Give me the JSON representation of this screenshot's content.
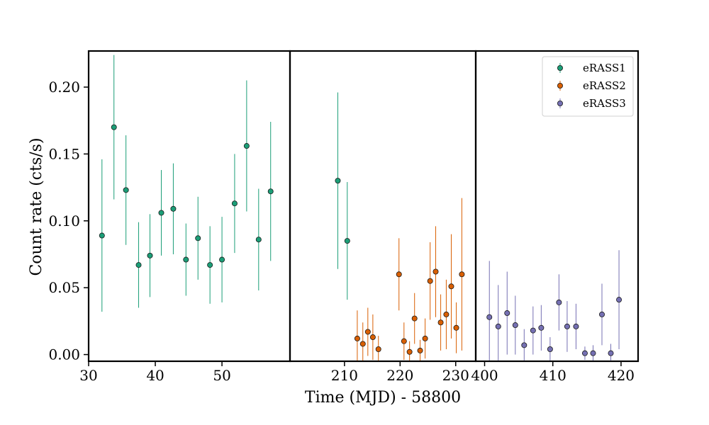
{
  "chart_data": {
    "type": "scatter",
    "ylabel": "Count rate (cts/s)",
    "xlabel": "Time (MJD) - 58800",
    "ylim": [
      -0.005,
      0.227
    ],
    "y_ticks": [
      "0.00",
      "0.05",
      "0.10",
      "0.15",
      "0.20"
    ],
    "y_tick_values": [
      0.0,
      0.05,
      0.1,
      0.15,
      0.2
    ],
    "legend_position": "top-right",
    "panels": [
      {
        "xlim": [
          30,
          60.2
        ],
        "x_ticks": [
          30,
          40,
          50
        ]
      },
      {
        "xlim": [
          200.2,
          233.6
        ],
        "x_ticks": [
          210,
          220,
          230
        ]
      },
      {
        "xlim": [
          398.7,
          422.5
        ],
        "x_ticks": [
          400,
          410,
          420
        ]
      }
    ],
    "series": [
      {
        "name": "eRASS1",
        "color": "#1b9e77",
        "points": [
          {
            "x": 32.0,
            "y": 0.089,
            "err": 0.057
          },
          {
            "x": 33.8,
            "y": 0.17,
            "err": 0.054
          },
          {
            "x": 35.6,
            "y": 0.123,
            "err": 0.041
          },
          {
            "x": 37.5,
            "y": 0.067,
            "err": 0.032
          },
          {
            "x": 39.2,
            "y": 0.074,
            "err": 0.031
          },
          {
            "x": 40.9,
            "y": 0.106,
            "err": 0.032
          },
          {
            "x": 42.7,
            "y": 0.109,
            "err": 0.034
          },
          {
            "x": 44.6,
            "y": 0.071,
            "err": 0.027
          },
          {
            "x": 46.4,
            "y": 0.087,
            "err": 0.031
          },
          {
            "x": 48.2,
            "y": 0.067,
            "err": 0.029
          },
          {
            "x": 50.0,
            "y": 0.071,
            "err": 0.032
          },
          {
            "x": 51.9,
            "y": 0.113,
            "err": 0.037
          },
          {
            "x": 53.7,
            "y": 0.156,
            "err": 0.049
          },
          {
            "x": 55.5,
            "y": 0.086,
            "err": 0.038
          },
          {
            "x": 57.3,
            "y": 0.122,
            "err": 0.052
          },
          {
            "x": 208.8,
            "y": 0.13,
            "err": 0.066
          },
          {
            "x": 210.5,
            "y": 0.085,
            "err": 0.044
          }
        ]
      },
      {
        "name": "eRASS2",
        "color": "#d95f02",
        "points": [
          {
            "x": 212.3,
            "y": 0.012,
            "err": 0.021
          },
          {
            "x": 213.3,
            "y": 0.008,
            "err": 0.016
          },
          {
            "x": 214.2,
            "y": 0.017,
            "err": 0.018
          },
          {
            "x": 215.1,
            "y": 0.013,
            "err": 0.017
          },
          {
            "x": 216.1,
            "y": 0.004,
            "err": 0.01
          },
          {
            "x": 219.8,
            "y": 0.06,
            "err": 0.027
          },
          {
            "x": 220.7,
            "y": 0.01,
            "err": 0.014
          },
          {
            "x": 221.7,
            "y": 0.002,
            "err": 0.008
          },
          {
            "x": 222.6,
            "y": 0.027,
            "err": 0.019
          },
          {
            "x": 223.6,
            "y": 0.003,
            "err": 0.008
          },
          {
            "x": 224.5,
            "y": 0.012,
            "err": 0.015
          },
          {
            "x": 225.4,
            "y": 0.055,
            "err": 0.029
          },
          {
            "x": 226.4,
            "y": 0.062,
            "err": 0.034
          },
          {
            "x": 227.3,
            "y": 0.024,
            "err": 0.021
          },
          {
            "x": 228.3,
            "y": 0.03,
            "err": 0.026
          },
          {
            "x": 229.2,
            "y": 0.051,
            "err": 0.039
          },
          {
            "x": 230.1,
            "y": 0.02,
            "err": 0.019
          },
          {
            "x": 231.1,
            "y": 0.06,
            "err": 0.057
          }
        ]
      },
      {
        "name": "eRASS3",
        "color": "#7570b3",
        "points": [
          {
            "x": 400.7,
            "y": 0.028,
            "err": 0.042
          },
          {
            "x": 402.0,
            "y": 0.021,
            "err": 0.031
          },
          {
            "x": 403.3,
            "y": 0.031,
            "err": 0.031
          },
          {
            "x": 404.5,
            "y": 0.022,
            "err": 0.022
          },
          {
            "x": 405.8,
            "y": 0.007,
            "err": 0.012
          },
          {
            "x": 407.1,
            "y": 0.018,
            "err": 0.018
          },
          {
            "x": 408.3,
            "y": 0.02,
            "err": 0.017
          },
          {
            "x": 409.6,
            "y": 0.004,
            "err": 0.009
          },
          {
            "x": 410.9,
            "y": 0.039,
            "err": 0.021
          },
          {
            "x": 412.1,
            "y": 0.021,
            "err": 0.019
          },
          {
            "x": 413.4,
            "y": 0.021,
            "err": 0.017
          },
          {
            "x": 414.7,
            "y": 0.001,
            "err": 0.005
          },
          {
            "x": 415.9,
            "y": 0.001,
            "err": 0.006
          },
          {
            "x": 417.2,
            "y": 0.03,
            "err": 0.023
          },
          {
            "x": 418.5,
            "y": 0.001,
            "err": 0.007
          },
          {
            "x": 419.7,
            "y": 0.041,
            "err": 0.037
          }
        ]
      }
    ]
  }
}
